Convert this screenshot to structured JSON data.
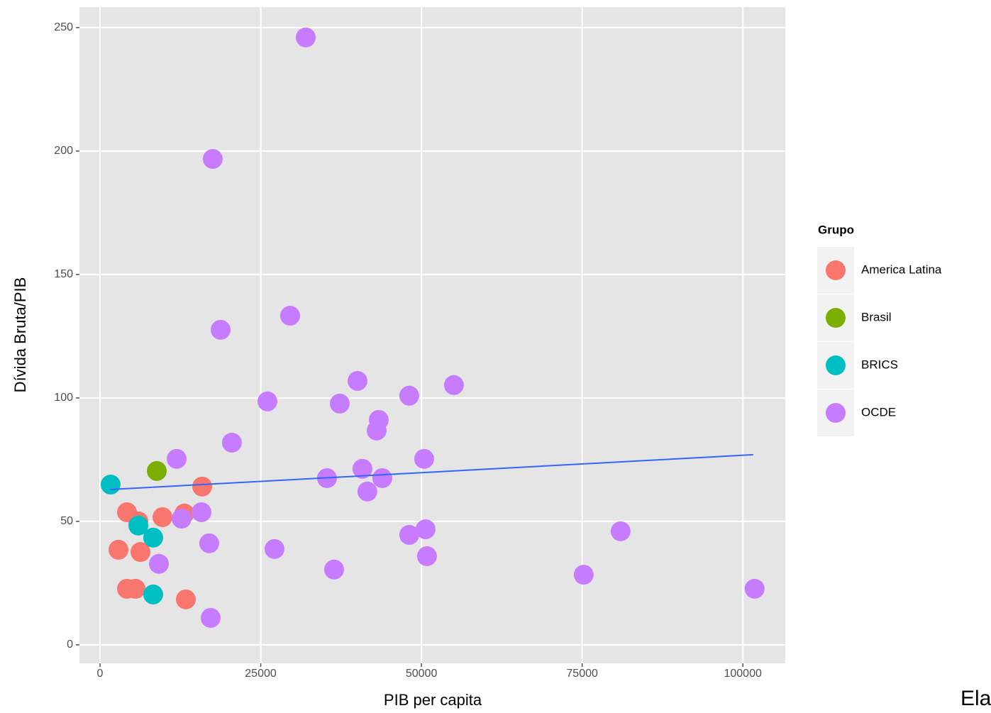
{
  "chart_data": {
    "type": "scatter",
    "x_label": "PIB per capita",
    "y_label": "Dívida Bruta/PIB",
    "legend_title": "Grupo",
    "legend_position": "right",
    "annotation": "Ela",
    "grid": true,
    "xlim": [
      -3200,
      106600
    ],
    "ylim": [
      -7.5,
      258.3
    ],
    "xticks": [
      0,
      25000,
      50000,
      75000,
      100000
    ],
    "yticks": [
      0,
      50,
      100,
      150,
      200,
      250
    ],
    "series": [
      {
        "name": "America Latina",
        "color": "#F8766D",
        "x": [
          4190,
          5960,
          2870,
          6290,
          9710,
          13130,
          15890,
          4190,
          5520,
          13350
        ],
        "values": [
          53.7,
          50,
          38.5,
          37.6,
          51.7,
          53.2,
          64.1,
          22.7,
          22.7,
          18.4
        ]
      },
      {
        "name": "Brasil",
        "color": "#7CAE00",
        "x": [
          8830
        ],
        "values": [
          70.4
        ]
      },
      {
        "name": "BRICS",
        "color": "#00BFC4",
        "x": [
          1650,
          5960,
          8270,
          8270
        ],
        "values": [
          64.9,
          48.3,
          43.4,
          20.4
        ]
      },
      {
        "name": "OCDE",
        "color": "#C77CFF",
        "x": [
          32000,
          17540,
          18760,
          29570,
          40050,
          48100,
          55050,
          26040,
          37290,
          43360,
          43030,
          20520,
          11920,
          50420,
          40820,
          35300,
          43910,
          41590,
          15780,
          12690,
          48100,
          50640,
          80980,
          16990,
          27140,
          9160,
          50860,
          36410,
          75240,
          101830,
          17210
        ],
        "values": [
          246,
          196.8,
          127.6,
          133.3,
          106.9,
          100.9,
          105.2,
          98.6,
          97.7,
          91.1,
          86.8,
          81.9,
          75.3,
          75.3,
          71.3,
          67.5,
          67.5,
          62.1,
          53.7,
          51.1,
          44.5,
          46.8,
          46,
          41.1,
          38.8,
          32.8,
          35.9,
          30.5,
          28.4,
          22.7,
          10.9
        ]
      }
    ],
    "trend": {
      "color": "#3366FF",
      "x": [
        1540,
        101610
      ],
      "values": [
        62.9,
        77.0
      ]
    }
  }
}
